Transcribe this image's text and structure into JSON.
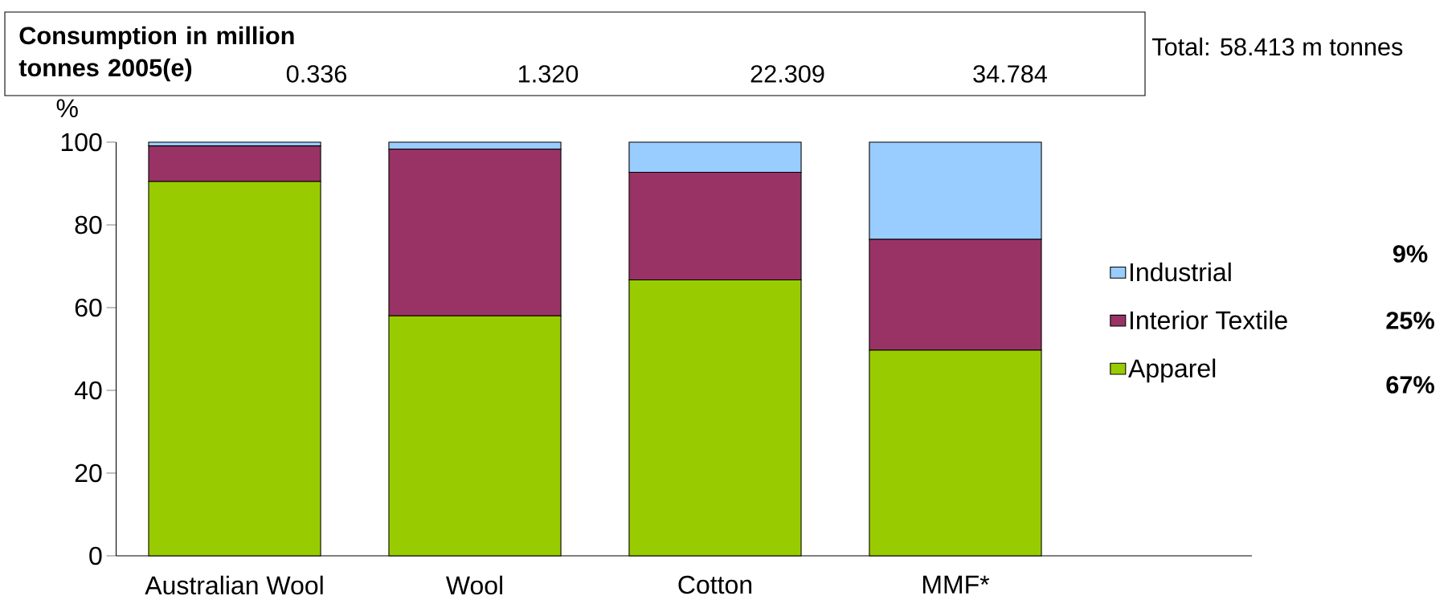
{
  "chart_data": {
    "type": "bar",
    "stacked": true,
    "ylabel": "%",
    "categories": [
      "Australian Wool",
      "Wool",
      "Cotton",
      "MMF*"
    ],
    "series": [
      {
        "name": "Apparel",
        "color": "#99cc00",
        "values": [
          90.5,
          58,
          66.7,
          49.7
        ]
      },
      {
        "name": "Interior Textile",
        "color": "#993366",
        "values": [
          8.6,
          40.3,
          26,
          26.8
        ]
      },
      {
        "name": "Industrial",
        "color": "#99ccff",
        "values": [
          0.9,
          1.7,
          7.3,
          23.5
        ]
      }
    ],
    "ylim": [
      0,
      100
    ],
    "yticks": [
      0,
      20,
      40,
      60,
      80,
      100
    ],
    "grid": false,
    "legend": "right",
    "annotations": [
      "Consumption in million tonnes 2005(e)",
      "0.336",
      "1.320",
      "22.309",
      "34.784",
      "Total: 58.413 m tonnes",
      "9%",
      "25%",
      "67%"
    ]
  }
}
